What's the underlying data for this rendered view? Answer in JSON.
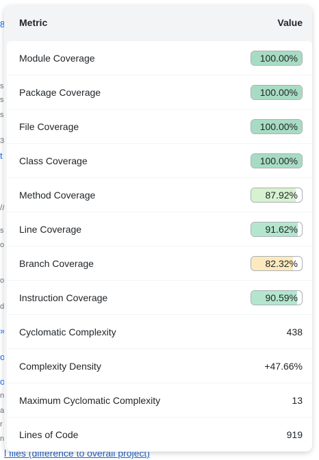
{
  "background": {
    "fragments": [
      "8",
      "s",
      "s",
      "se",
      "34",
      "t",
      "//",
      "s",
      "or",
      "o",
      "d",
      "»",
      "o",
      "or",
      "ne",
      "a",
      "r",
      "ne"
    ],
    "bottom_link": "l files (difference to overall project)"
  },
  "table": {
    "header": {
      "metric": "Metric",
      "value": "Value"
    },
    "rows": [
      {
        "label": "Module Coverage",
        "value": "100.00%",
        "percent": 100.0,
        "fill_color": "#a7dcc3"
      },
      {
        "label": "Package Coverage",
        "value": "100.00%",
        "percent": 100.0,
        "fill_color": "#a7dcc3"
      },
      {
        "label": "File Coverage",
        "value": "100.00%",
        "percent": 100.0,
        "fill_color": "#a7dcc3"
      },
      {
        "label": "Class Coverage",
        "value": "100.00%",
        "percent": 100.0,
        "fill_color": "#a7dcc3"
      },
      {
        "label": "Method Coverage",
        "value": "87.92%",
        "percent": 87.92,
        "fill_color": "#d6f2cf"
      },
      {
        "label": "Line Coverage",
        "value": "91.62%",
        "percent": 91.62,
        "fill_color": "#b4e6cd"
      },
      {
        "label": "Branch Coverage",
        "value": "82.32%",
        "percent": 82.32,
        "fill_color": "#fde9bd"
      },
      {
        "label": "Instruction Coverage",
        "value": "90.59%",
        "percent": 90.59,
        "fill_color": "#b4e6cd"
      },
      {
        "label": "Cyclomatic Complexity",
        "value": "438"
      },
      {
        "label": "Complexity Density",
        "value": "+47.66%"
      },
      {
        "label": "Maximum Cyclomatic Complexity",
        "value": "13"
      },
      {
        "label": "Lines of Code",
        "value": "919"
      }
    ]
  }
}
